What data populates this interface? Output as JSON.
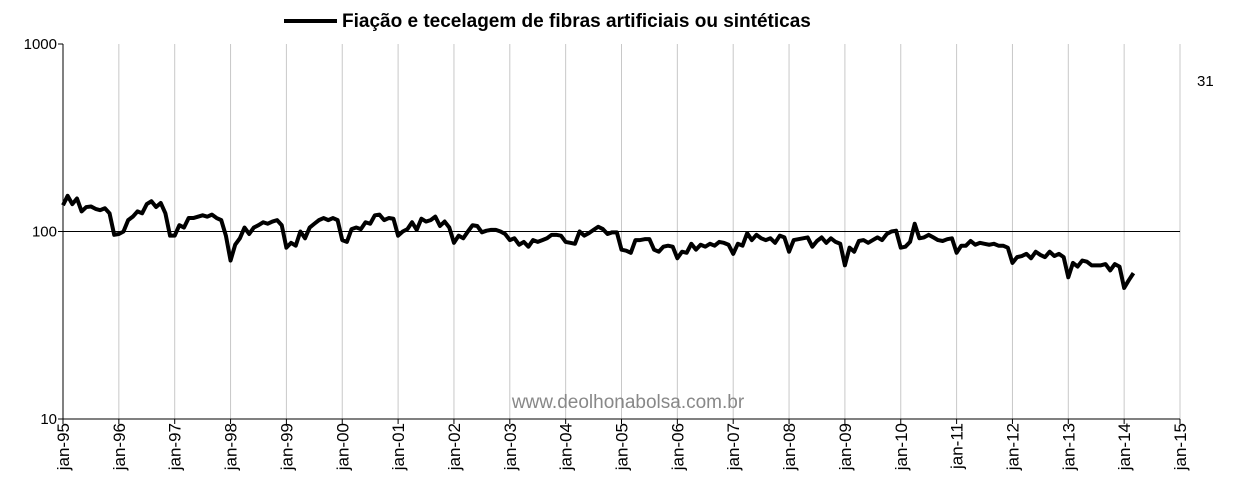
{
  "chart_data": {
    "type": "line",
    "log_y": true,
    "grid": true,
    "legend": "top",
    "annotations": [
      "31",
      "www.deolhonabolsa.com.br"
    ],
    "ylim": [
      10,
      1000
    ],
    "yticks": [
      10,
      100,
      1000
    ],
    "xlim": [
      "1995-01",
      "2015-01"
    ],
    "xticks": [
      {
        "value": "1995-01",
        "label": "jan-95"
      },
      {
        "value": "1996-01",
        "label": "jan-96"
      },
      {
        "value": "1997-01",
        "label": "jan-97"
      },
      {
        "value": "1998-01",
        "label": "jan-98"
      },
      {
        "value": "1999-01",
        "label": "jan-99"
      },
      {
        "value": "2000-01",
        "label": "jan-00"
      },
      {
        "value": "2001-01",
        "label": "jan-01"
      },
      {
        "value": "2002-01",
        "label": "jan-02"
      },
      {
        "value": "2003-01",
        "label": "jan-03"
      },
      {
        "value": "2004-01",
        "label": "jan-04"
      },
      {
        "value": "2005-01",
        "label": "jan-05"
      },
      {
        "value": "2006-01",
        "label": "jan-06"
      },
      {
        "value": "2007-01",
        "label": "jan-07"
      },
      {
        "value": "2008-01",
        "label": "jan-08"
      },
      {
        "value": "2009-01",
        "label": "jan-09"
      },
      {
        "value": "2010-01",
        "label": "jan-10"
      },
      {
        "value": "2011-01",
        "label": "jan-11"
      },
      {
        "value": "2012-01",
        "label": "jan-12"
      },
      {
        "value": "2013-01",
        "label": "jan-13"
      },
      {
        "value": "2014-01",
        "label": "jan-14"
      },
      {
        "value": "2015-01",
        "label": "jan-15"
      }
    ],
    "x": [
      "1995-01",
      "1995-02",
      "1995-03",
      "1995-04",
      "1995-05",
      "1995-06",
      "1995-07",
      "1995-08",
      "1995-09",
      "1995-10",
      "1995-11",
      "1995-12",
      "1996-01",
      "1996-02",
      "1996-03",
      "1996-04",
      "1996-05",
      "1996-06",
      "1996-07",
      "1996-08",
      "1996-09",
      "1996-10",
      "1996-11",
      "1996-12",
      "1997-01",
      "1997-02",
      "1997-03",
      "1997-04",
      "1997-05",
      "1997-06",
      "1997-07",
      "1997-08",
      "1997-09",
      "1997-10",
      "1997-11",
      "1997-12",
      "1998-01",
      "1998-02",
      "1998-03",
      "1998-04",
      "1998-05",
      "1998-06",
      "1998-07",
      "1998-08",
      "1998-09",
      "1998-10",
      "1998-11",
      "1998-12",
      "1999-01",
      "1999-02",
      "1999-03",
      "1999-04",
      "1999-05",
      "1999-06",
      "1999-07",
      "1999-08",
      "1999-09",
      "1999-10",
      "1999-11",
      "1999-12",
      "2000-01",
      "2000-02",
      "2000-03",
      "2000-04",
      "2000-05",
      "2000-06",
      "2000-07",
      "2000-08",
      "2000-09",
      "2000-10",
      "2000-11",
      "2000-12",
      "2001-01",
      "2001-02",
      "2001-03",
      "2001-04",
      "2001-05",
      "2001-06",
      "2001-07",
      "2001-08",
      "2001-09",
      "2001-10",
      "2001-11",
      "2001-12",
      "2002-01",
      "2002-02",
      "2002-03",
      "2002-04",
      "2002-05",
      "2002-06",
      "2002-07",
      "2002-08",
      "2002-09",
      "2002-10",
      "2002-11",
      "2002-12",
      "2003-01",
      "2003-02",
      "2003-03",
      "2003-04",
      "2003-05",
      "2003-06",
      "2003-07",
      "2003-08",
      "2003-09",
      "2003-10",
      "2003-11",
      "2003-12",
      "2004-01",
      "2004-02",
      "2004-03",
      "2004-04",
      "2004-05",
      "2004-06",
      "2004-07",
      "2004-08",
      "2004-09",
      "2004-10",
      "2004-11",
      "2004-12",
      "2005-01",
      "2005-02",
      "2005-03",
      "2005-04",
      "2005-05",
      "2005-06",
      "2005-07",
      "2005-08",
      "2005-09",
      "2005-10",
      "2005-11",
      "2005-12",
      "2006-01",
      "2006-02",
      "2006-03",
      "2006-04",
      "2006-05",
      "2006-06",
      "2006-07",
      "2006-08",
      "2006-09",
      "2006-10",
      "2006-11",
      "2006-12",
      "2007-01",
      "2007-02",
      "2007-03",
      "2007-04",
      "2007-05",
      "2007-06",
      "2007-07",
      "2007-08",
      "2007-09",
      "2007-10",
      "2007-11",
      "2007-12",
      "2008-01",
      "2008-02",
      "2008-03",
      "2008-04",
      "2008-05",
      "2008-06",
      "2008-07",
      "2008-08",
      "2008-09",
      "2008-10",
      "2008-11",
      "2008-12",
      "2009-01",
      "2009-02",
      "2009-03",
      "2009-04",
      "2009-05",
      "2009-06",
      "2009-07",
      "2009-08",
      "2009-09",
      "2009-10",
      "2009-11",
      "2009-12",
      "2010-01",
      "2010-02",
      "2010-03",
      "2010-04",
      "2010-05",
      "2010-06",
      "2010-07",
      "2010-08",
      "2010-09",
      "2010-10",
      "2010-11",
      "2010-12",
      "2011-01",
      "2011-02",
      "2011-03",
      "2011-04",
      "2011-05",
      "2011-06",
      "2011-07",
      "2011-08",
      "2011-09",
      "2011-10",
      "2011-11",
      "2011-12",
      "2012-01",
      "2012-02",
      "2012-03",
      "2012-04",
      "2012-05",
      "2012-06",
      "2012-07",
      "2012-08",
      "2012-09",
      "2012-10",
      "2012-11",
      "2012-12",
      "2013-01",
      "2013-02",
      "2013-03",
      "2013-04",
      "2013-05",
      "2013-06",
      "2013-07",
      "2013-08",
      "2013-09",
      "2013-10",
      "2013-11",
      "2013-12",
      "2014-01",
      "2014-02",
      "2014-03"
    ],
    "series": [
      {
        "name": "Fiação e tecelagem de fibras artificiais ou sintéticas",
        "color": "#000000",
        "values": [
          138,
          155,
          140,
          150,
          128,
          135,
          136,
          132,
          130,
          133,
          125,
          96,
          97,
          100,
          115,
          120,
          128,
          125,
          140,
          145,
          135,
          142,
          125,
          95,
          95,
          108,
          105,
          118,
          118,
          120,
          122,
          120,
          123,
          118,
          115,
          95,
          70,
          85,
          92,
          105,
          97,
          105,
          108,
          112,
          110,
          113,
          115,
          108,
          82,
          87,
          84,
          100,
          92,
          105,
          110,
          115,
          118,
          115,
          118,
          115,
          90,
          88,
          103,
          105,
          103,
          112,
          110,
          122,
          123,
          115,
          118,
          117,
          95,
          100,
          103,
          112,
          102,
          117,
          113,
          115,
          120,
          107,
          113,
          105,
          87,
          95,
          92,
          100,
          108,
          107,
          99,
          101,
          102,
          102,
          100,
          97,
          90,
          92,
          85,
          88,
          83,
          90,
          88,
          90,
          92,
          96,
          96,
          95,
          88,
          87,
          86,
          100,
          95,
          98,
          102,
          106,
          103,
          97,
          99,
          99,
          80,
          79,
          77,
          90,
          90,
          91,
          91,
          80,
          78,
          83,
          84,
          83,
          72,
          78,
          77,
          86,
          80,
          85,
          83,
          86,
          84,
          88,
          87,
          85,
          76,
          86,
          84,
          98,
          90,
          96,
          92,
          90,
          92,
          87,
          95,
          93,
          78,
          90,
          91,
          92,
          93,
          83,
          89,
          93,
          87,
          92,
          88,
          86,
          66,
          82,
          78,
          89,
          90,
          87,
          90,
          93,
          90,
          97,
          100,
          101,
          82,
          83,
          88,
          110,
          92,
          93,
          96,
          93,
          90,
          89,
          91,
          92,
          77,
          84,
          84,
          89,
          85,
          87,
          86,
          85,
          86,
          84,
          84,
          82,
          68,
          73,
          74,
          76,
          72,
          78,
          75,
          73,
          78,
          74,
          76,
          73,
          57,
          68,
          65,
          70,
          69,
          66,
          66,
          66,
          67,
          62,
          67,
          65,
          50,
          55,
          60
        ]
      }
    ]
  }
}
